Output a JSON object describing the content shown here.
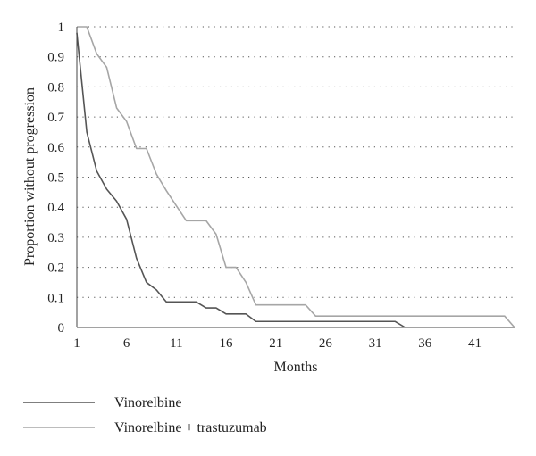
{
  "chart_data": {
    "type": "line",
    "title": "",
    "xlabel": "Months",
    "ylabel": "Proportion without progression",
    "xlim": [
      1,
      45
    ],
    "ylim": [
      0,
      1
    ],
    "x_ticks": [
      1,
      6,
      11,
      16,
      21,
      26,
      31,
      36,
      41
    ],
    "y_ticks": [
      0,
      0.1,
      0.2,
      0.3,
      0.4,
      0.5,
      0.6,
      0.7,
      0.8,
      0.9,
      1
    ],
    "y_tick_labels": [
      "0",
      "0.1",
      "0.2",
      "0.3",
      "0.4",
      "0.5",
      "0.6",
      "0.7",
      "0.8",
      "0.9",
      "1"
    ],
    "grid": "horizontal-dotted",
    "legend_position": "bottom-left",
    "series": [
      {
        "name": "Vinorelbine",
        "color": "#555555",
        "points": [
          [
            1,
            0.98
          ],
          [
            2,
            0.65
          ],
          [
            3,
            0.52
          ],
          [
            4,
            0.46
          ],
          [
            5,
            0.42
          ],
          [
            6,
            0.36
          ],
          [
            7,
            0.23
          ],
          [
            8,
            0.15
          ],
          [
            9,
            0.125
          ],
          [
            10,
            0.085
          ],
          [
            12,
            0.085
          ],
          [
            13,
            0.085
          ],
          [
            14,
            0.065
          ],
          [
            15,
            0.065
          ],
          [
            16,
            0.045
          ],
          [
            17,
            0.045
          ],
          [
            18,
            0.045
          ],
          [
            19,
            0.02
          ],
          [
            33,
            0.02
          ],
          [
            34,
            0
          ]
        ]
      },
      {
        "name": "Vinorelbine + trastuzumab",
        "color": "#a6a6a6",
        "points": [
          [
            1,
            1
          ],
          [
            2,
            1
          ],
          [
            3,
            0.91
          ],
          [
            4,
            0.865
          ],
          [
            5,
            0.73
          ],
          [
            6,
            0.685
          ],
          [
            7,
            0.595
          ],
          [
            8,
            0.595
          ],
          [
            9,
            0.51
          ],
          [
            10,
            0.455
          ],
          [
            11,
            0.405
          ],
          [
            12,
            0.355
          ],
          [
            13,
            0.355
          ],
          [
            14,
            0.355
          ],
          [
            15,
            0.31
          ],
          [
            16,
            0.2
          ],
          [
            17,
            0.2
          ],
          [
            18,
            0.15
          ],
          [
            19,
            0.075
          ],
          [
            24,
            0.075
          ],
          [
            25,
            0.038
          ],
          [
            44,
            0.038
          ],
          [
            45,
            0
          ]
        ]
      }
    ]
  }
}
